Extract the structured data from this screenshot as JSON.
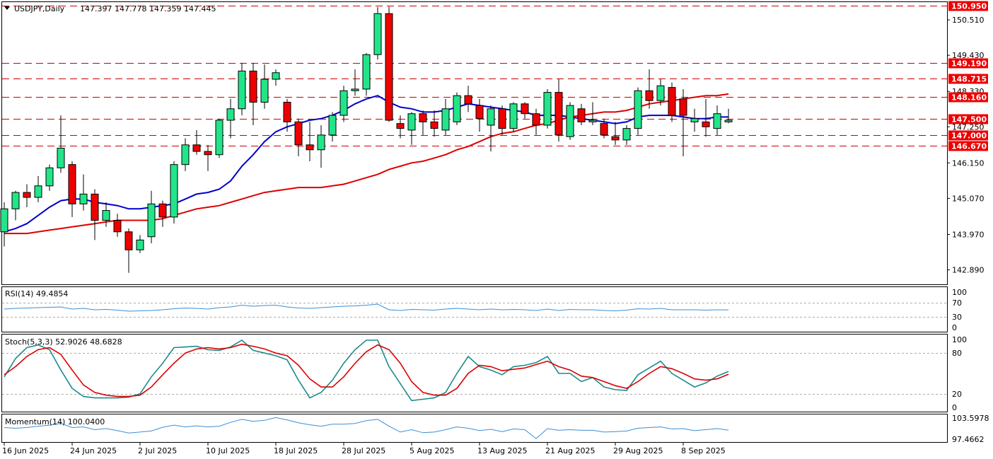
{
  "colors": {
    "bull": "#22e58a",
    "bear": "#ee0000",
    "ma_fast": "#0000cc",
    "ma_slow": "#dd0000",
    "level_line": "#cc0000",
    "level_tag_bg": "#ee0000",
    "rsi_line": "#3a8fd6",
    "stoch_k": "#1e8a8a",
    "stoch_d": "#dd0000",
    "momentum_line": "#3a8fd6"
  },
  "header": {
    "symbol_timeframe": "USDJPY,Daily",
    "ohlc": "147.397 147.778 147.359 147.445"
  },
  "chart_data": [
    {
      "type": "candlestick",
      "title": "USDJPY,Daily",
      "ylim": [
        142.45,
        151.05
      ],
      "price_ticks": [
        "150.510",
        "149.430",
        "148.330",
        "147.250",
        "146.150",
        "145.070",
        "143.970",
        "142.890"
      ],
      "date_labels": [
        {
          "i": 0,
          "text": "16 Jun 2025"
        },
        {
          "i": 6,
          "text": "24 Jun 2025"
        },
        {
          "i": 12,
          "text": "2 Jul 2025"
        },
        {
          "i": 18,
          "text": "10 Jul 2025"
        },
        {
          "i": 24,
          "text": "18 Jul 2025"
        },
        {
          "i": 30,
          "text": "28 Jul 2025"
        },
        {
          "i": 36,
          "text": "5 Aug 2025"
        },
        {
          "i": 42,
          "text": "13 Aug 2025"
        },
        {
          "i": 48,
          "text": "21 Aug 2025"
        },
        {
          "i": 54,
          "text": "29 Aug 2025"
        },
        {
          "i": 60,
          "text": "8 Sep 2025"
        }
      ],
      "levels": [
        "150.950",
        "149.190",
        "148.715",
        "148.160",
        "147.500",
        "147.000",
        "146.670"
      ],
      "candles": [
        {
          "o": 144.05,
          "h": 144.95,
          "l": 143.6,
          "c": 144.75
        },
        {
          "o": 144.75,
          "h": 145.3,
          "l": 144.4,
          "c": 145.25
        },
        {
          "o": 145.25,
          "h": 145.5,
          "l": 144.8,
          "c": 145.1
        },
        {
          "o": 145.1,
          "h": 145.75,
          "l": 144.95,
          "c": 145.45
        },
        {
          "o": 145.45,
          "h": 146.1,
          "l": 145.3,
          "c": 146.0
        },
        {
          "o": 146.0,
          "h": 147.6,
          "l": 145.85,
          "c": 146.6
        },
        {
          "o": 146.1,
          "h": 146.2,
          "l": 144.5,
          "c": 144.9
        },
        {
          "o": 144.9,
          "h": 145.8,
          "l": 144.7,
          "c": 145.2
        },
        {
          "o": 145.2,
          "h": 145.35,
          "l": 143.8,
          "c": 144.4
        },
        {
          "o": 144.4,
          "h": 144.95,
          "l": 144.2,
          "c": 144.7
        },
        {
          "o": 144.4,
          "h": 144.6,
          "l": 143.9,
          "c": 144.05
        },
        {
          "o": 144.05,
          "h": 144.15,
          "l": 142.8,
          "c": 143.5
        },
        {
          "o": 143.5,
          "h": 143.95,
          "l": 143.4,
          "c": 143.8
        },
        {
          "o": 143.9,
          "h": 145.3,
          "l": 143.7,
          "c": 144.9
        },
        {
          "o": 144.9,
          "h": 145.0,
          "l": 144.2,
          "c": 144.5
        },
        {
          "o": 144.5,
          "h": 146.2,
          "l": 144.3,
          "c": 146.1
        },
        {
          "o": 146.1,
          "h": 146.9,
          "l": 145.9,
          "c": 146.7
        },
        {
          "o": 146.7,
          "h": 147.15,
          "l": 146.4,
          "c": 146.5
        },
        {
          "o": 146.5,
          "h": 146.7,
          "l": 145.9,
          "c": 146.4
        },
        {
          "o": 146.4,
          "h": 147.5,
          "l": 146.3,
          "c": 147.45
        },
        {
          "o": 147.45,
          "h": 148.1,
          "l": 146.9,
          "c": 147.8
        },
        {
          "o": 147.8,
          "h": 149.2,
          "l": 147.6,
          "c": 148.95
        },
        {
          "o": 148.95,
          "h": 149.2,
          "l": 147.3,
          "c": 148.0
        },
        {
          "o": 148.0,
          "h": 149.15,
          "l": 147.8,
          "c": 148.7
        },
        {
          "o": 148.7,
          "h": 149.0,
          "l": 148.5,
          "c": 148.9
        },
        {
          "o": 148.0,
          "h": 148.1,
          "l": 147.1,
          "c": 147.4
        },
        {
          "o": 147.4,
          "h": 147.5,
          "l": 146.35,
          "c": 146.7
        },
        {
          "o": 146.7,
          "h": 147.4,
          "l": 146.2,
          "c": 146.55
        },
        {
          "o": 146.55,
          "h": 147.3,
          "l": 146.0,
          "c": 147.0
        },
        {
          "o": 147.0,
          "h": 147.7,
          "l": 146.8,
          "c": 147.6
        },
        {
          "o": 147.6,
          "h": 148.5,
          "l": 147.4,
          "c": 148.35
        },
        {
          "o": 148.35,
          "h": 149.0,
          "l": 148.2,
          "c": 148.4
        },
        {
          "o": 148.4,
          "h": 149.5,
          "l": 148.2,
          "c": 149.45
        },
        {
          "o": 149.45,
          "h": 150.9,
          "l": 149.3,
          "c": 150.7
        },
        {
          "o": 150.7,
          "h": 150.91,
          "l": 147.4,
          "c": 147.45
        },
        {
          "o": 147.35,
          "h": 147.6,
          "l": 146.9,
          "c": 147.2
        },
        {
          "o": 147.15,
          "h": 147.7,
          "l": 146.7,
          "c": 147.65
        },
        {
          "o": 147.65,
          "h": 147.75,
          "l": 147.0,
          "c": 147.4
        },
        {
          "o": 147.4,
          "h": 147.75,
          "l": 146.95,
          "c": 147.2
        },
        {
          "o": 147.15,
          "h": 148.1,
          "l": 147.0,
          "c": 147.8
        },
        {
          "o": 147.4,
          "h": 148.3,
          "l": 147.3,
          "c": 148.2
        },
        {
          "o": 148.2,
          "h": 148.5,
          "l": 147.7,
          "c": 147.95
        },
        {
          "o": 147.9,
          "h": 148.1,
          "l": 147.1,
          "c": 147.5
        },
        {
          "o": 147.3,
          "h": 147.9,
          "l": 146.5,
          "c": 147.8
        },
        {
          "o": 147.8,
          "h": 147.9,
          "l": 147.0,
          "c": 147.2
        },
        {
          "o": 147.2,
          "h": 148.0,
          "l": 147.1,
          "c": 147.95
        },
        {
          "o": 147.95,
          "h": 148.0,
          "l": 147.5,
          "c": 147.65
        },
        {
          "o": 147.65,
          "h": 147.8,
          "l": 147.0,
          "c": 147.3
        },
        {
          "o": 147.3,
          "h": 148.4,
          "l": 147.2,
          "c": 148.3
        },
        {
          "o": 148.3,
          "h": 148.7,
          "l": 146.8,
          "c": 147.0
        },
        {
          "o": 146.95,
          "h": 148.0,
          "l": 146.85,
          "c": 147.9
        },
        {
          "o": 147.8,
          "h": 147.95,
          "l": 147.3,
          "c": 147.4
        },
        {
          "o": 147.4,
          "h": 148.0,
          "l": 147.3,
          "c": 147.45
        },
        {
          "o": 147.35,
          "h": 147.5,
          "l": 146.9,
          "c": 147.0
        },
        {
          "o": 146.95,
          "h": 147.4,
          "l": 146.7,
          "c": 146.85
        },
        {
          "o": 146.85,
          "h": 147.3,
          "l": 146.7,
          "c": 147.2
        },
        {
          "o": 147.2,
          "h": 148.45,
          "l": 147.0,
          "c": 148.35
        },
        {
          "o": 148.35,
          "h": 149.0,
          "l": 147.8,
          "c": 148.05
        },
        {
          "o": 148.05,
          "h": 148.7,
          "l": 147.9,
          "c": 148.5
        },
        {
          "o": 148.45,
          "h": 148.6,
          "l": 147.4,
          "c": 147.6
        },
        {
          "o": 148.1,
          "h": 148.4,
          "l": 146.35,
          "c": 147.6
        },
        {
          "o": 147.4,
          "h": 147.8,
          "l": 147.1,
          "c": 147.5
        },
        {
          "o": 147.4,
          "h": 148.1,
          "l": 146.95,
          "c": 147.25
        },
        {
          "o": 147.2,
          "h": 147.9,
          "l": 147.0,
          "c": 147.65
        },
        {
          "o": 147.4,
          "h": 147.8,
          "l": 147.36,
          "c": 147.45
        }
      ],
      "series": [
        {
          "name": "",
          "type": "ma",
          "values": [
            144.05,
            144.15,
            144.3,
            144.55,
            144.8,
            145.0,
            145.05,
            145.05,
            144.95,
            144.9,
            144.85,
            144.75,
            144.75,
            144.8,
            144.85,
            144.9,
            145.05,
            145.2,
            145.25,
            145.35,
            145.6,
            146.05,
            146.4,
            146.8,
            147.1,
            147.25,
            147.35,
            147.45,
            147.5,
            147.6,
            147.75,
            147.95,
            148.1,
            148.2,
            148.0,
            147.85,
            147.8,
            147.7,
            147.7,
            147.75,
            147.85,
            147.95,
            147.9,
            147.85,
            147.8,
            147.75,
            147.7,
            147.6,
            147.6,
            147.6,
            147.55,
            147.5,
            147.45,
            147.4,
            147.35,
            147.4,
            147.55,
            147.6,
            147.6,
            147.6,
            147.55,
            147.5,
            147.5,
            147.55,
            147.55
          ]
        },
        {
          "name": "",
          "type": "ma",
          "values": [
            144.0,
            144.0,
            144.0,
            144.05,
            144.1,
            144.15,
            144.2,
            144.25,
            144.3,
            144.35,
            144.4,
            144.4,
            144.4,
            144.4,
            144.45,
            144.55,
            144.65,
            144.75,
            144.8,
            144.85,
            144.95,
            145.05,
            145.15,
            145.25,
            145.3,
            145.35,
            145.4,
            145.4,
            145.4,
            145.45,
            145.5,
            145.6,
            145.7,
            145.8,
            145.95,
            146.05,
            146.15,
            146.2,
            146.3,
            146.4,
            146.55,
            146.65,
            146.8,
            146.95,
            147.05,
            147.1,
            147.2,
            147.3,
            147.35,
            147.45,
            147.55,
            147.6,
            147.65,
            147.7,
            147.7,
            147.75,
            147.85,
            147.95,
            148.0,
            148.05,
            148.1,
            148.15,
            148.2,
            148.2,
            148.25
          ]
        }
      ]
    },
    {
      "type": "line",
      "title": "RSI(14) 49.4854",
      "ylim": [
        0,
        100
      ],
      "ticks": [
        "100",
        "70",
        "30",
        "0"
      ],
      "levels": [
        70,
        30
      ],
      "series": [
        {
          "name": "",
          "values": [
            52,
            54,
            55,
            56,
            57,
            58,
            52,
            54,
            50,
            51,
            49,
            46,
            47,
            48,
            50,
            53,
            55,
            54,
            52,
            56,
            58,
            63,
            60,
            62,
            63,
            58,
            55,
            54,
            56,
            58,
            60,
            61,
            63,
            66,
            50,
            48,
            51,
            50,
            49,
            52,
            54,
            52,
            50,
            52,
            50,
            51,
            50,
            48,
            52,
            48,
            51,
            50,
            50,
            48,
            47,
            49,
            53,
            52,
            54,
            50,
            50,
            50,
            49,
            50,
            49.49
          ]
        }
      ]
    },
    {
      "type": "line",
      "title": "Stoch(5,3,3) 52.9026 48.6828",
      "ylim": [
        0,
        100
      ],
      "ticks": [
        "100",
        "80",
        "20",
        "0"
      ],
      "levels": [
        80,
        20
      ],
      "series": [
        {
          "name": "",
          "values": [
            45,
            72,
            88,
            92,
            85,
            55,
            28,
            16,
            14,
            14,
            14,
            15,
            20,
            45,
            65,
            88,
            89,
            90,
            85,
            84,
            89,
            99,
            84,
            80,
            76,
            70,
            40,
            14,
            22,
            40,
            65,
            85,
            99,
            99,
            60,
            35,
            10,
            12,
            14,
            22,
            50,
            75,
            60,
            55,
            48,
            60,
            62,
            66,
            75,
            50,
            50,
            38,
            44,
            30,
            26,
            25,
            48,
            58,
            68,
            50,
            40,
            30,
            36,
            46,
            52.9
          ]
        },
        {
          "name": "",
          "values": [
            48,
            60,
            75,
            85,
            88,
            78,
            55,
            33,
            22,
            18,
            16,
            16,
            18,
            30,
            48,
            65,
            80,
            86,
            88,
            86,
            88,
            93,
            90,
            86,
            80,
            76,
            62,
            42,
            30,
            30,
            45,
            65,
            82,
            92,
            85,
            65,
            38,
            22,
            18,
            18,
            28,
            50,
            62,
            60,
            54,
            56,
            58,
            63,
            68,
            60,
            55,
            46,
            44,
            38,
            32,
            28,
            38,
            50,
            60,
            57,
            50,
            42,
            40,
            42,
            48.68
          ]
        }
      ]
    },
    {
      "type": "line",
      "title": "Momentum(14) 100.0400",
      "ylim": [
        96.8,
        104.2
      ],
      "ticks": [
        "103.5978",
        "97.4662"
      ],
      "series": [
        {
          "name": "",
          "values": [
            100.8,
            100.6,
            100.8,
            101.2,
            101.5,
            102.0,
            100.8,
            101.0,
            100.2,
            100.5,
            99.9,
            99.2,
            99.5,
            99.8,
            100.9,
            101.5,
            101.0,
            101.3,
            101.0,
            101.2,
            102.3,
            103.2,
            102.6,
            102.9,
            103.7,
            103.0,
            102.2,
            101.6,
            101.2,
            101.8,
            101.8,
            102.0,
            102.8,
            103.2,
            101.2,
            99.5,
            100.2,
            99.3,
            99.5,
            100.2,
            101.0,
            100.6,
            99.9,
            100.3,
            99.6,
            100.4,
            100.2,
            97.6,
            100.5,
            100.0,
            100.2,
            100.0,
            100.0,
            99.5,
            99.6,
            99.8,
            100.6,
            100.8,
            101.0,
            100.4,
            100.5,
            99.9,
            100.2,
            100.5,
            100.04
          ]
        }
      ]
    }
  ]
}
